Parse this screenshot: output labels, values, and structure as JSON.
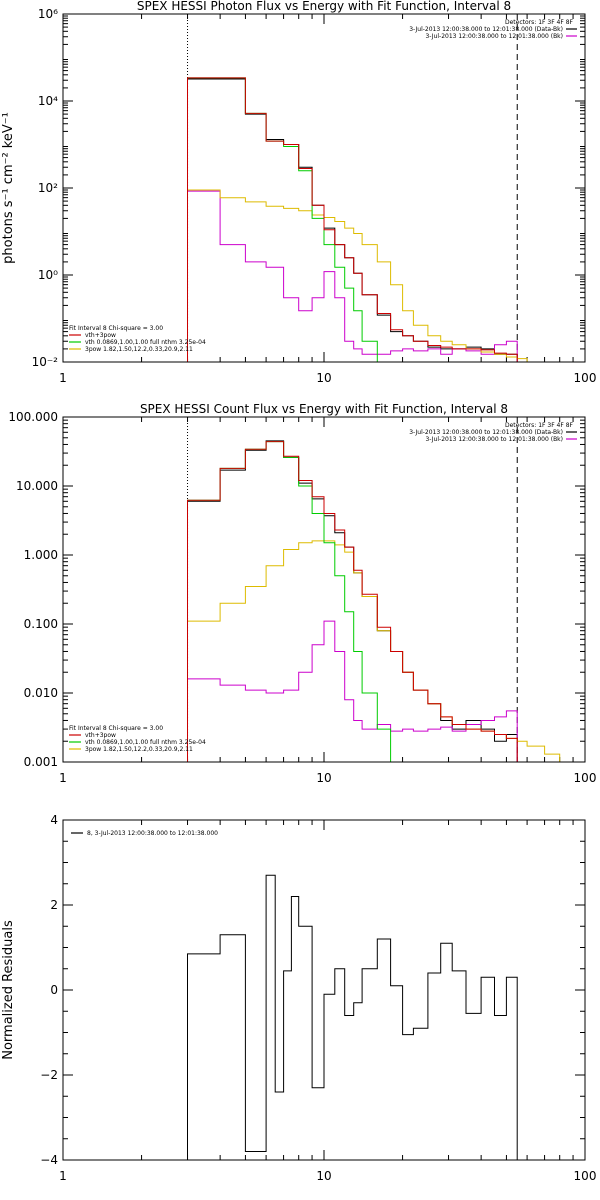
{
  "chart_data": [
    {
      "type": "line",
      "title": "SPEX HESSI Photon Flux vs Energy with Fit Function, Interval 8",
      "ylabel": "photons s⁻¹ cm⁻² keV⁻¹",
      "xlabel": "",
      "xscale": "log",
      "yscale": "log",
      "xlim": [
        1,
        100
      ],
      "ylim": [
        0.01,
        1000000
      ],
      "xticks": [
        {
          "v": 1,
          "label": "1"
        },
        {
          "v": 10,
          "label": "10"
        },
        {
          "v": 100,
          "label": "100"
        }
      ],
      "yticks": [
        {
          "v": 0.01,
          "label": "10⁻²"
        },
        {
          "v": 1,
          "label": "10⁰"
        },
        {
          "v": 100,
          "label": "10²"
        },
        {
          "v": 10000,
          "label": "10⁴"
        },
        {
          "v": 1000000,
          "label": "10⁶"
        }
      ],
      "vlines": [
        {
          "x": 3,
          "style": "dotted"
        },
        {
          "x": 55,
          "style": "dashed"
        }
      ],
      "legend_top": {
        "position": "top-right",
        "header": "Detectors: 1F 3F 4F 8F",
        "lines": [
          {
            "text": "3-Jul-2013 12:00:38.000 to 12:01:38.000 (Data-Bk)",
            "color": "#000000"
          },
          {
            "text": "3-Jul-2013 12:00:38.000 to 12:01:38.000 (Bk)",
            "color": "#cc00cc"
          }
        ]
      },
      "legend_bottom": {
        "position": "bottom-left",
        "header": "Fit Interval 8   Chi-square = 3.00",
        "lines": [
          {
            "text": "vth+3pow",
            "color": "#cc0000"
          },
          {
            "text": "vth 0.0869,1.00,1.00  full nthm 3.25e-04",
            "color": "#00cc00"
          },
          {
            "text": "3pow 1.82,1.50,12.2,0.33,20.9,2.11",
            "color": "#ddbb00"
          }
        ]
      },
      "edges": [
        3,
        4,
        5,
        6,
        7,
        8,
        9,
        10,
        11,
        12,
        13,
        14,
        16,
        18,
        20,
        22,
        25,
        28,
        31,
        35,
        40,
        45,
        50,
        55,
        60,
        70
      ],
      "series": [
        {
          "name": "Data-Bk",
          "color": "#000000",
          "values": [
            32000,
            32000,
            5000,
            1300,
            1000,
            300,
            40,
            12,
            5,
            2.5,
            1.1,
            0.35,
            0.12,
            0.05,
            0.04,
            0.03,
            0.022,
            0.02,
            0.02,
            0.022,
            0.02,
            0.015,
            0.015,
            null,
            null
          ]
        },
        {
          "name": "vth+3pow",
          "color": "#cc0000",
          "values": [
            34000,
            34000,
            5200,
            1200,
            1000,
            280,
            40,
            11,
            5,
            2.5,
            1.1,
            0.35,
            0.13,
            0.055,
            0.04,
            0.03,
            0.024,
            0.022,
            0.02,
            0.02,
            0.019,
            0.016,
            0.015,
            null,
            null
          ]
        },
        {
          "name": "vth",
          "color": "#00cc00",
          "values": [
            34000,
            34000,
            5200,
            1200,
            900,
            250,
            20,
            5,
            1.5,
            0.5,
            0.15,
            0.03,
            0.01,
            null,
            null,
            null,
            null,
            null,
            null,
            null,
            null,
            null,
            null,
            null,
            null
          ]
        },
        {
          "name": "3pow",
          "color": "#ddbb00",
          "values": [
            90,
            60,
            48,
            38,
            34,
            30,
            24,
            21,
            17,
            12,
            9,
            5,
            2,
            0.6,
            0.15,
            0.07,
            0.04,
            0.03,
            0.025,
            0.02,
            0.017,
            0.015,
            0.013,
            0.012,
            0.01
          ]
        },
        {
          "name": "Bk",
          "color": "#cc00cc",
          "values": [
            85,
            5,
            2,
            1.5,
            0.3,
            0.15,
            0.3,
            1.2,
            0.3,
            0.03,
            0.02,
            0.015,
            0.015,
            0.018,
            0.02,
            0.018,
            0.02,
            0.015,
            0.02,
            0.018,
            0.015,
            0.025,
            0.03,
            null,
            null
          ]
        }
      ]
    },
    {
      "type": "line",
      "title": "SPEX HESSI Count Flux vs Energy with Fit Function, Interval 8",
      "ylabel": "",
      "xlabel": "",
      "xscale": "log",
      "yscale": "log",
      "xlim": [
        1,
        100
      ],
      "ylim": [
        0.001,
        100
      ],
      "xticks": [
        {
          "v": 1,
          "label": "1"
        },
        {
          "v": 10,
          "label": "10"
        },
        {
          "v": 100,
          "label": "100"
        }
      ],
      "yticks": [
        {
          "v": 0.001,
          "label": "0.001"
        },
        {
          "v": 0.01,
          "label": "0.010"
        },
        {
          "v": 0.1,
          "label": "0.100"
        },
        {
          "v": 1,
          "label": "1.000"
        },
        {
          "v": 10,
          "label": "10.000"
        },
        {
          "v": 100,
          "label": "100.000"
        }
      ],
      "vlines": [
        {
          "x": 3,
          "style": "dotted"
        },
        {
          "x": 55,
          "style": "dashed"
        }
      ],
      "legend_top": {
        "position": "top-right",
        "header": "Detectors: 1F 3F 4F 8F",
        "lines": [
          {
            "text": "3-Jul-2013 12:00:38.000 to 12:01:38.000 (Data-Bk)",
            "color": "#000000"
          },
          {
            "text": "3-Jul-2013 12:00:38.000 to 12:01:38.000 (Bk)",
            "color": "#cc00cc"
          }
        ]
      },
      "legend_bottom": {
        "position": "bottom-left",
        "header": "Fit Interval 8   Chi-square = 3.00",
        "lines": [
          {
            "text": "vth+3pow",
            "color": "#cc0000"
          },
          {
            "text": "vth 0.0869,1.00,1.00  full nthm 3.25e-04",
            "color": "#00cc00"
          },
          {
            "text": "3pow 1.82,1.50,12.2,0.33,20.9,2.11",
            "color": "#ddbb00"
          }
        ]
      },
      "edges": [
        3,
        4,
        5,
        6,
        7,
        8,
        9,
        10,
        11,
        12,
        13,
        14,
        16,
        18,
        20,
        22,
        25,
        28,
        31,
        35,
        40,
        45,
        50,
        55,
        60,
        70,
        80,
        90
      ],
      "series": [
        {
          "name": "Data-Bk",
          "color": "#000000",
          "values": [
            6,
            17,
            33,
            45,
            26,
            11,
            6.5,
            3.7,
            2.1,
            1.3,
            0.55,
            0.25,
            0.08,
            0.04,
            0.02,
            0.011,
            0.007,
            0.004,
            0.003,
            0.004,
            0.003,
            0.002,
            0.0025,
            null,
            null,
            null,
            null
          ]
        },
        {
          "name": "vth+3pow",
          "color": "#cc0000",
          "values": [
            6.2,
            18,
            34,
            44,
            27,
            12,
            7,
            4,
            2.3,
            1.3,
            0.6,
            0.27,
            0.09,
            0.04,
            0.02,
            0.011,
            0.007,
            0.0045,
            0.0035,
            0.003,
            0.0028,
            0.0025,
            0.0022,
            null,
            null,
            null,
            null
          ]
        },
        {
          "name": "vth",
          "color": "#00cc00",
          "values": [
            6.2,
            18,
            34,
            44,
            26,
            10,
            4,
            1.5,
            0.5,
            0.15,
            0.04,
            0.01,
            0.003,
            null,
            null,
            null,
            null,
            null,
            null,
            null,
            null,
            null,
            null,
            null,
            null,
            null,
            null
          ]
        },
        {
          "name": "3pow",
          "color": "#ddbb00",
          "values": [
            0.11,
            0.2,
            0.35,
            0.7,
            1.2,
            1.5,
            1.6,
            1.6,
            1.4,
            1.1,
            0.55,
            0.25,
            0.08,
            0.04,
            0.02,
            0.011,
            0.007,
            0.0045,
            0.0035,
            0.003,
            0.0028,
            0.0025,
            0.0022,
            0.002,
            0.0017,
            0.0013,
            0.001
          ]
        },
        {
          "name": "Bk",
          "color": "#cc00cc",
          "values": [
            0.016,
            0.013,
            0.011,
            0.01,
            0.011,
            0.02,
            0.05,
            0.11,
            0.04,
            0.008,
            0.004,
            0.003,
            0.0035,
            0.0028,
            0.003,
            0.0028,
            0.003,
            0.0032,
            0.0028,
            0.0035,
            0.004,
            0.0045,
            0.0055,
            null,
            null,
            null,
            null
          ]
        }
      ]
    },
    {
      "type": "line",
      "title": "",
      "ylabel": "Normalized Residuals",
      "xlabel": "",
      "xscale": "log",
      "yscale": "linear",
      "xlim": [
        1,
        100
      ],
      "ylim": [
        -4,
        4
      ],
      "xticks": [
        {
          "v": 1,
          "label": "1"
        },
        {
          "v": 10,
          "label": "10"
        },
        {
          "v": 100,
          "label": "100"
        }
      ],
      "yticks": [
        {
          "v": -4,
          "label": "−4"
        },
        {
          "v": -2,
          "label": "−2"
        },
        {
          "v": 0,
          "label": "0"
        },
        {
          "v": 2,
          "label": "2"
        },
        {
          "v": 4,
          "label": "4"
        }
      ],
      "legend_top": {
        "position": "top-left",
        "header": "",
        "lines": [
          {
            "text": "8, 3-Jul-2013 12:00:38.000 to 12:01:38.000",
            "color": "#000000"
          }
        ]
      },
      "edges": [
        3,
        4,
        5,
        6,
        6.5,
        7,
        7.5,
        8,
        9,
        10,
        11,
        12,
        13,
        14,
        16,
        18,
        20,
        22,
        25,
        28,
        31,
        35,
        40,
        45,
        50,
        55
      ],
      "series": [
        {
          "name": "8",
          "color": "#000000",
          "values": [
            0.85,
            1.3,
            -3.8,
            2.7,
            -2.4,
            0.45,
            2.2,
            1.5,
            -2.3,
            -0.1,
            0.5,
            -0.6,
            -0.3,
            0.5,
            1.2,
            0.1,
            -1.05,
            -0.9,
            0.4,
            1.1,
            0.45,
            -0.55,
            0.3,
            -0.6,
            0.3
          ]
        }
      ]
    }
  ]
}
